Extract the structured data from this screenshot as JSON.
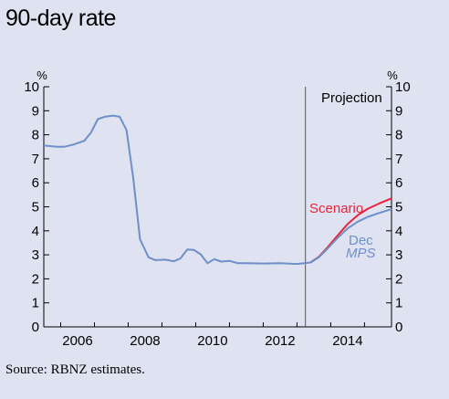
{
  "chart_data": {
    "type": "line",
    "title": "90-day rate",
    "y_unit_left": "%",
    "y_unit_right": "%",
    "xlim": [
      2005.5,
      2015.8
    ],
    "ylim": [
      0,
      10
    ],
    "y_ticks": [
      0,
      1,
      2,
      3,
      4,
      5,
      6,
      7,
      8,
      9,
      10
    ],
    "x_ticks": [
      2006,
      2008,
      2010,
      2012,
      2014
    ],
    "x_tick_labels": [
      "2006",
      "2008",
      "2010",
      "2012",
      "2014"
    ],
    "projection_start": 2013.25,
    "projection_label": "Projection",
    "grid": false,
    "series": [
      {
        "name": "Dec MPS",
        "label_lines": [
          "Dec",
          "MPS"
        ],
        "color": "#6e8fc7",
        "points": [
          [
            2005.5,
            7.55
          ],
          [
            2005.9,
            7.5
          ],
          [
            2006.1,
            7.5
          ],
          [
            2006.4,
            7.6
          ],
          [
            2006.7,
            7.75
          ],
          [
            2006.9,
            8.1
          ],
          [
            2007.1,
            8.65
          ],
          [
            2007.3,
            8.75
          ],
          [
            2007.55,
            8.8
          ],
          [
            2007.75,
            8.75
          ],
          [
            2007.95,
            8.2
          ],
          [
            2008.15,
            6.2
          ],
          [
            2008.35,
            3.65
          ],
          [
            2008.6,
            2.9
          ],
          [
            2008.8,
            2.78
          ],
          [
            2009.1,
            2.8
          ],
          [
            2009.35,
            2.73
          ],
          [
            2009.55,
            2.85
          ],
          [
            2009.75,
            3.22
          ],
          [
            2009.95,
            3.2
          ],
          [
            2010.15,
            3.02
          ],
          [
            2010.35,
            2.65
          ],
          [
            2010.55,
            2.82
          ],
          [
            2010.75,
            2.72
          ],
          [
            2011.0,
            2.75
          ],
          [
            2011.25,
            2.65
          ],
          [
            2011.5,
            2.65
          ],
          [
            2012.0,
            2.64
          ],
          [
            2012.5,
            2.65
          ],
          [
            2013.0,
            2.62
          ],
          [
            2013.4,
            2.68
          ],
          [
            2013.65,
            2.9
          ],
          [
            2013.9,
            3.25
          ],
          [
            2014.2,
            3.7
          ],
          [
            2014.5,
            4.1
          ],
          [
            2014.8,
            4.38
          ],
          [
            2015.1,
            4.58
          ],
          [
            2015.45,
            4.75
          ],
          [
            2015.8,
            4.9
          ]
        ]
      },
      {
        "name": "Scenario",
        "label_lines": [
          "Scenario"
        ],
        "color": "#e8223a",
        "points": [
          [
            2013.4,
            2.68
          ],
          [
            2013.65,
            2.92
          ],
          [
            2013.9,
            3.3
          ],
          [
            2014.2,
            3.8
          ],
          [
            2014.5,
            4.28
          ],
          [
            2014.8,
            4.65
          ],
          [
            2015.1,
            4.92
          ],
          [
            2015.45,
            5.15
          ],
          [
            2015.8,
            5.35
          ]
        ]
      }
    ]
  },
  "source_text": "Source: RBNZ estimates."
}
